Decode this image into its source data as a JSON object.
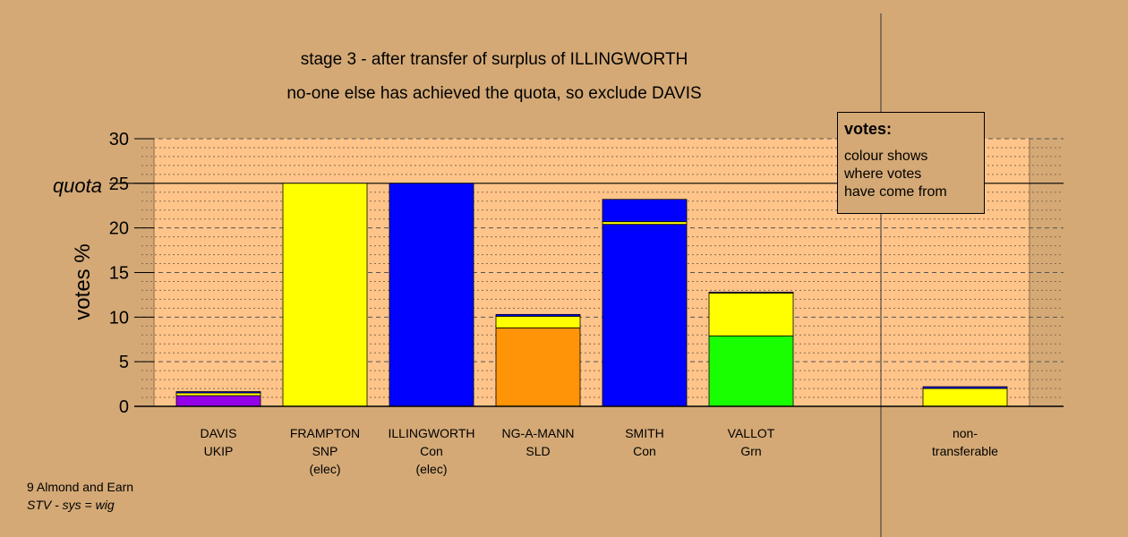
{
  "header": {
    "title": "stage 3 - after transfer of surplus of ILLINGWORTH",
    "subtitle": "no-one else has achieved the quota, so exclude DAVIS"
  },
  "legend": {
    "title": "votes:",
    "lines": [
      "colour shows",
      "where votes",
      "have come from"
    ]
  },
  "footer": {
    "ward": "9 Almond and Earn",
    "system": "STV - sys = wig"
  },
  "chart_data": {
    "type": "bar",
    "stacked": true,
    "ylabel": "votes %",
    "ylim": [
      0,
      30
    ],
    "yticks": [
      0,
      5,
      10,
      15,
      20,
      25,
      30
    ],
    "quota": 25,
    "quota_label": "quota",
    "grid": true,
    "categories": [
      {
        "lines": [
          "DAVIS",
          "UKIP"
        ]
      },
      {
        "lines": [
          "FRAMPTON",
          "SNP",
          "(elec)"
        ]
      },
      {
        "lines": [
          "ILLINGWORTH",
          "Con",
          "(elec)"
        ]
      },
      {
        "lines": [
          "NG-A-MANN",
          "SLD"
        ]
      },
      {
        "lines": [
          "SMITH",
          "Con"
        ]
      },
      {
        "lines": [
          "VALLOT",
          "Grn"
        ]
      },
      {
        "lines": [
          "non-",
          "transferable"
        ]
      }
    ],
    "stacks": [
      [
        {
          "value": 1.2,
          "color": "#9400e8"
        },
        {
          "value": 0.3,
          "color": "#ffff00"
        },
        {
          "value": 0.15,
          "color": "#0000ff"
        }
      ],
      [
        {
          "value": 25.0,
          "color": "#ffff00"
        }
      ],
      [
        {
          "value": 25.0,
          "color": "#0000ff"
        }
      ],
      [
        {
          "value": 8.8,
          "color": "#ff9408"
        },
        {
          "value": 1.3,
          "color": "#ffff00"
        },
        {
          "value": 0.2,
          "color": "#0000ff"
        }
      ],
      [
        {
          "value": 20.4,
          "color": "#0000ff"
        },
        {
          "value": 0.3,
          "color": "#ffff00"
        },
        {
          "value": 2.5,
          "color": "#0000ff"
        }
      ],
      [
        {
          "value": 7.9,
          "color": "#1aff00"
        },
        {
          "value": 4.8,
          "color": "#ffff00"
        },
        {
          "value": 0.1,
          "color": "#0000ff"
        }
      ],
      [
        {
          "value": 2.0,
          "color": "#ffff00"
        },
        {
          "value": 0.2,
          "color": "#0000ff"
        }
      ]
    ],
    "colors": {
      "page_bg": "#d4a976",
      "plot_bg": "#fec48a"
    }
  }
}
